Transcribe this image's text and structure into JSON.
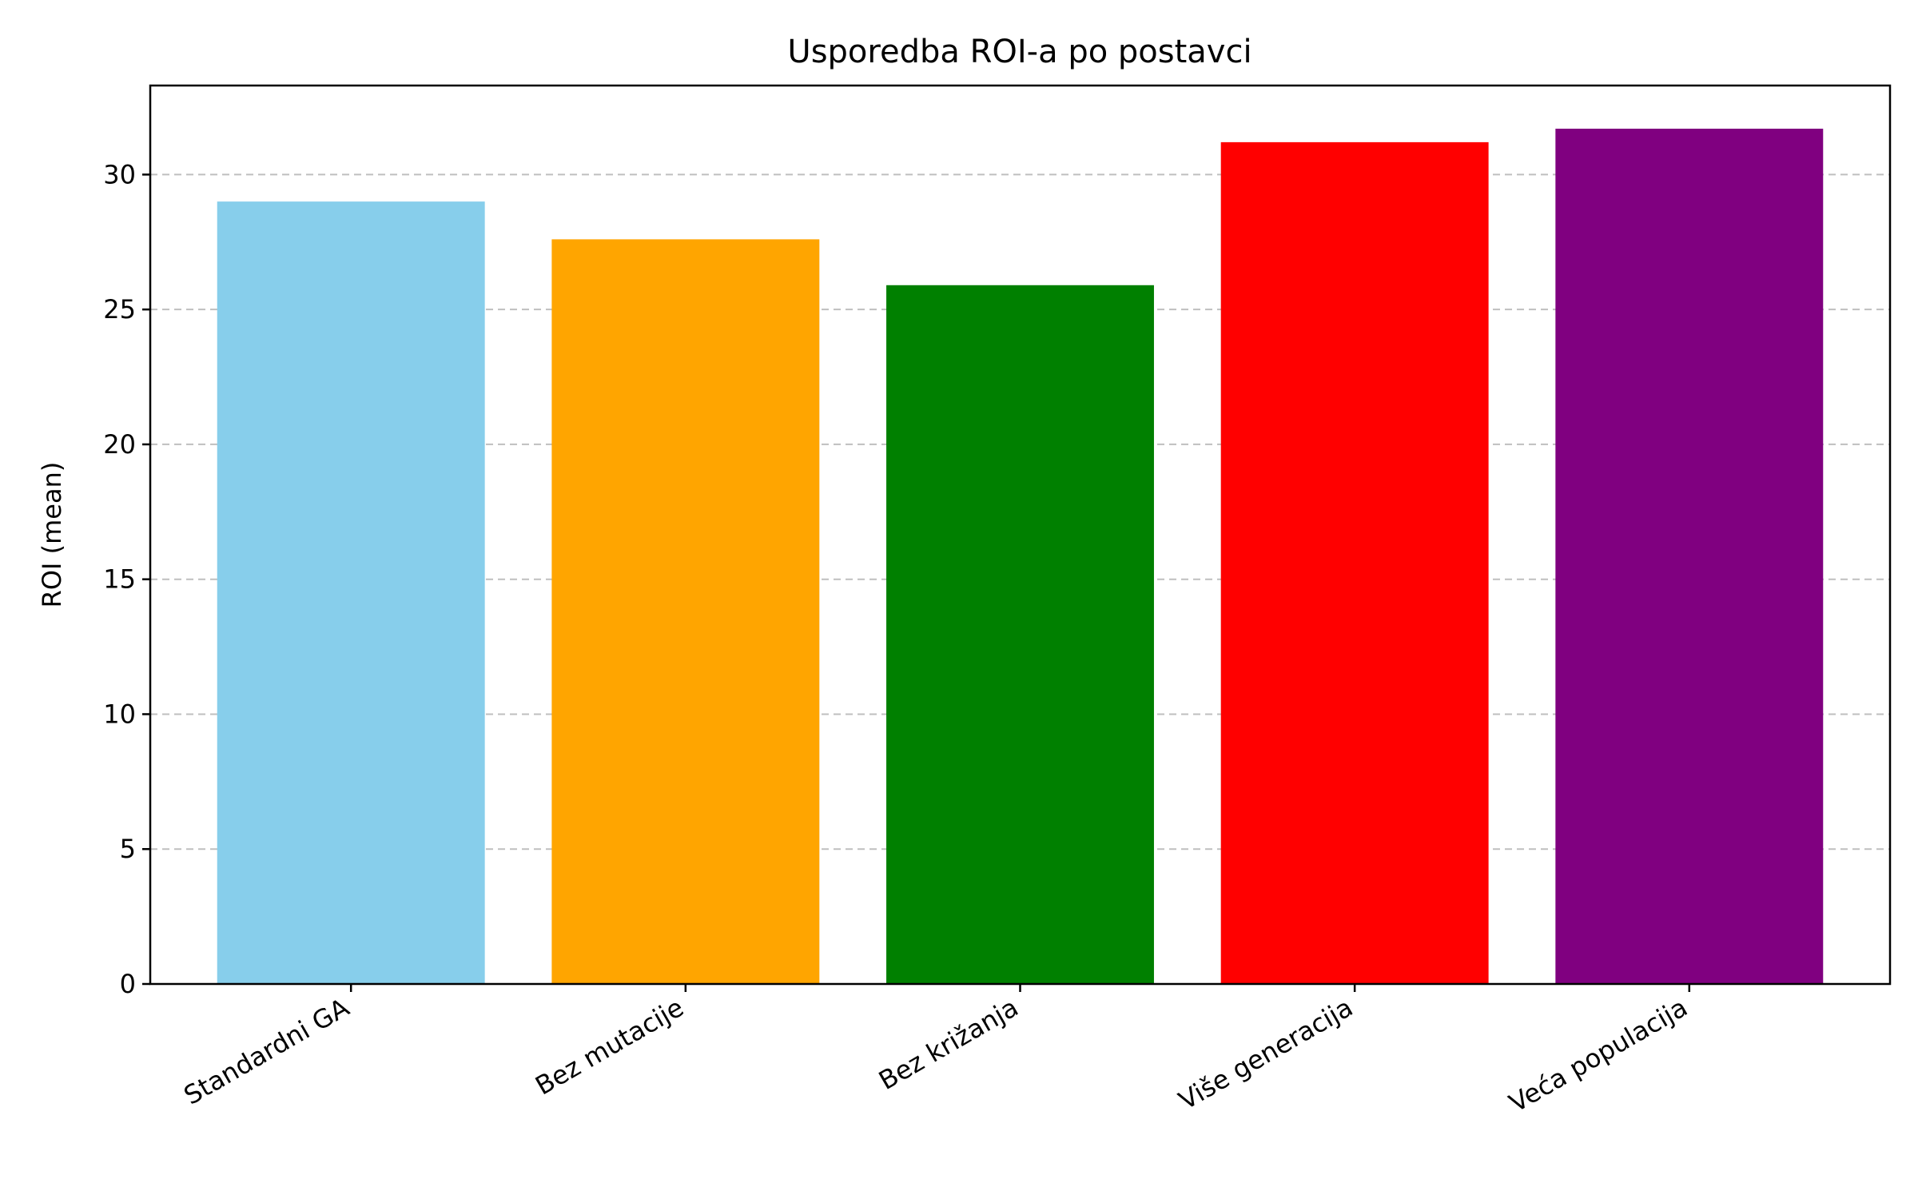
{
  "chart_data": {
    "type": "bar",
    "title": "Usporedba ROI-a po postavci",
    "xlabel": "",
    "ylabel": "ROI (mean)",
    "categories": [
      "Standardni GA",
      "Bez mutacije",
      "Bez križanja",
      "Više generacija",
      "Veća populacija"
    ],
    "values": [
      29.0,
      27.6,
      25.9,
      31.2,
      31.7
    ],
    "colors": [
      "#87ceeb",
      "#ffa500",
      "#008000",
      "#ff0000",
      "#800080"
    ],
    "ylim": [
      0,
      33.3
    ],
    "yticks": [
      0,
      5,
      10,
      15,
      20,
      25,
      30
    ],
    "grid": "y-dashed",
    "legend": "none"
  }
}
